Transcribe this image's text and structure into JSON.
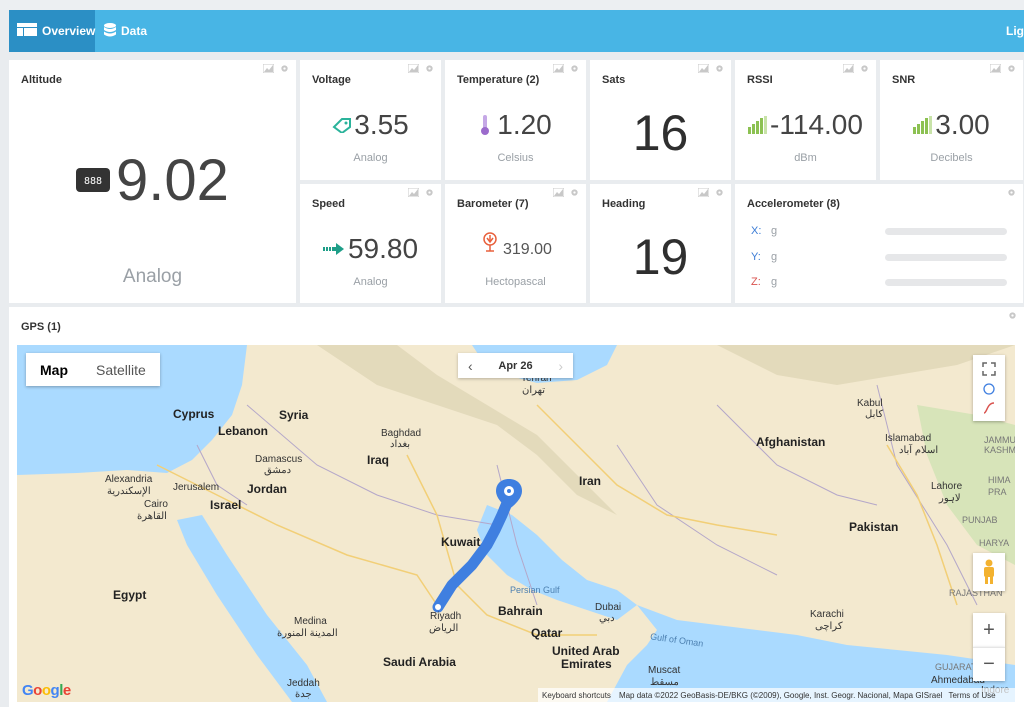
{
  "nav": {
    "tabs": [
      {
        "label": "Overview",
        "icon": "dashboard-icon",
        "active": true
      },
      {
        "label": "Data",
        "icon": "database-icon",
        "active": false
      }
    ],
    "right_label": "Lig"
  },
  "cards": {
    "altitude": {
      "title": "Altitude",
      "value": "9.02",
      "unit": "Analog",
      "icon": "gauge-display-icon"
    },
    "voltage": {
      "title": "Voltage",
      "value": "3.55",
      "unit": "Analog",
      "icon": "battery-tag-icon"
    },
    "temperature": {
      "title": "Temperature (2)",
      "value": "1.20",
      "unit": "Celsius",
      "icon": "thermometer-icon"
    },
    "sats": {
      "title": "Sats",
      "value": "16"
    },
    "rssi": {
      "title": "RSSI",
      "value": "-114.00",
      "unit": "dBm",
      "icon": "signal-bars-icon"
    },
    "snr": {
      "title": "SNR",
      "value": "3.00",
      "unit": "Decibels",
      "icon": "signal-bars-icon"
    },
    "speed": {
      "title": "Speed",
      "value": "59.80",
      "unit": "Analog",
      "icon": "arrow-right-icon"
    },
    "barometer": {
      "title": "Barometer (7)",
      "value": "319.00",
      "unit": "Hectopascal",
      "icon": "barometer-icon"
    },
    "heading": {
      "title": "Heading",
      "value": "19"
    },
    "accelerometer": {
      "title": "Accelerometer (8)",
      "axes": [
        {
          "axis": "X:",
          "unit": "g",
          "color": "#3a7bd5"
        },
        {
          "axis": "Y:",
          "unit": "g",
          "color": "#3a7bd5"
        },
        {
          "axis": "Z:",
          "unit": "g",
          "color": "#d9534f"
        }
      ]
    }
  },
  "gps": {
    "title": "GPS (1)",
    "map_type": {
      "map": "Map",
      "satellite": "Satellite"
    },
    "date": "Apr 26",
    "prev": "‹",
    "next": "›",
    "zoom_in": "+",
    "zoom_out": "−",
    "attribution": {
      "shortcuts": "Keyboard shortcuts",
      "data": "Map data ©2022 GeoBasis-DE/BKG (©2009), Google, Inst. Geogr. Nacional, Mapa GISrael",
      "terms": "Terms of Use"
    },
    "google": "Google",
    "labels": {
      "tehran": "Tehran",
      "tehran_fa": "تهران",
      "cyprus": "Cyprus",
      "syria": "Syria",
      "lebanon": "Lebanon",
      "baghdad": "Baghdad",
      "baghdad_ar": "بغداد",
      "damascus": "Damascus",
      "damascus_ar": "دمشق",
      "iraq": "Iraq",
      "kabul": "Kabul",
      "kabul_fa": "کابل",
      "afghanistan": "Afghanistan",
      "islamabad": "Islamabad",
      "islamabad_ur": "اسلام آباد",
      "jammu": "JAMMU AN",
      "kashmir": "KASHMIR",
      "alexandria": "Alexandria",
      "alexandria_ar": "الإسكندرية",
      "jerusalem": "Jerusalem",
      "jordan": "Jordan",
      "cairo": "Cairo",
      "cairo_ar": "القاهرة",
      "israel": "Israel",
      "iran": "Iran",
      "lahore": "Lahore",
      "lahore_ur": "لاہور",
      "hima": "HIMA",
      "prad": "PRA",
      "punjab": "PUNJAB",
      "kuwait": "Kuwait",
      "pakistan": "Pakistan",
      "harya": "HARYA",
      "egypt": "Egypt",
      "persian_gulf": "Persian Gulf",
      "bahrain": "Bahrain",
      "dubai": "Dubai",
      "dubai_ar": "دبي",
      "riyadh": "Riyadh",
      "riyadh_ar": "الرياض",
      "qatar": "Qatar",
      "rajasthan": "RAJASTHAN",
      "medina": "Medina",
      "medina_ar": "المدينة المنورة",
      "uae1": "United Arab",
      "uae2": "Emirates",
      "gulf_oman": "Gulf of Oman",
      "karachi": "Karachi",
      "karachi_ur": "کراچی",
      "saudi": "Saudi Arabia",
      "muscat": "Muscat",
      "muscat_ar": "مسقط",
      "gujarat": "GUJARAT",
      "ahmedabad": "Ahmedabad",
      "jeddah": "Jeddah",
      "jeddah_ar": "جدة",
      "indore": "Indore"
    }
  },
  "colors": {
    "nav": "#48b5e5",
    "nav_active": "#2b8fc5",
    "track": "#3f7fe0",
    "voltage_icon": "#2bb39b",
    "temp_icon": "#9b6bcc",
    "signal_icon": "#8cc152",
    "speed_icon": "#1e9e88",
    "baro_icon": "#e8603c"
  }
}
